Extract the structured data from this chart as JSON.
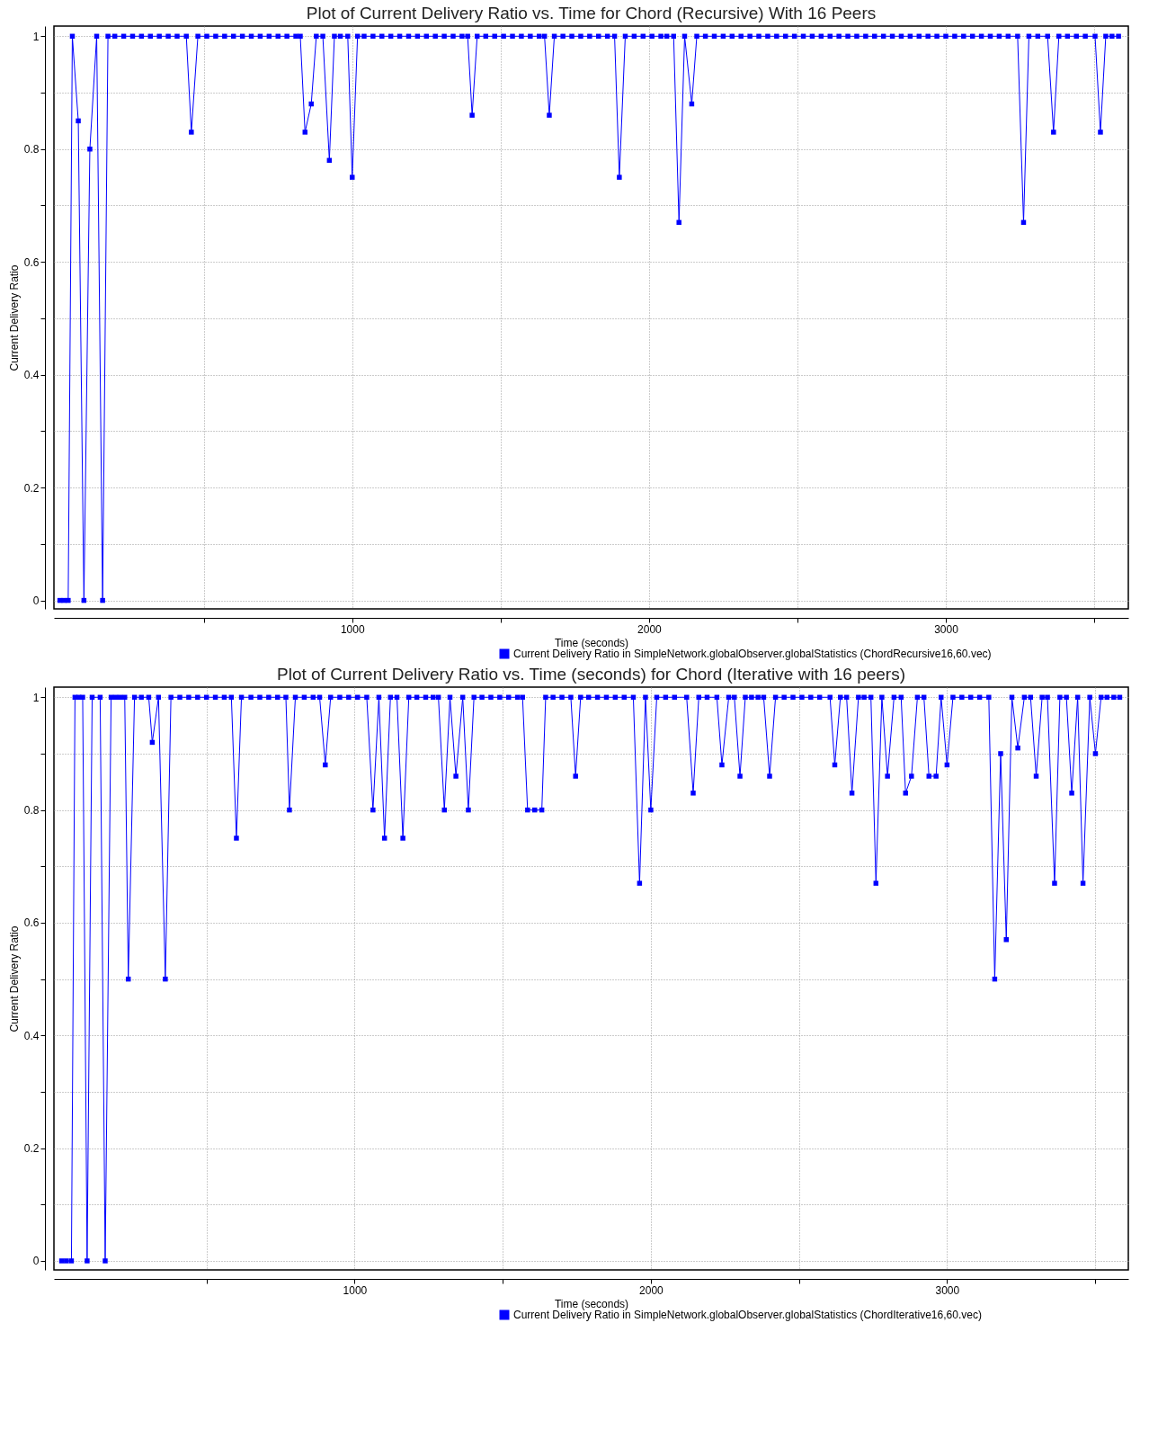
{
  "chart_data": [
    {
      "type": "line",
      "title": "Plot of Current Delivery Ratio vs. Time for Chord (Recursive) With 16 Peers",
      "xlabel": "Time (seconds)",
      "ylabel": "Current Delivery Ratio",
      "xlim": [
        -5,
        3615
      ],
      "xticks": [
        {
          "value": 500,
          "label": null
        },
        1000,
        {
          "value": 1500,
          "label": null
        },
        2000,
        {
          "value": 2500,
          "label": null
        },
        3000,
        {
          "value": 3500,
          "label": null
        }
      ],
      "ylim": [
        -0.015,
        1.018
      ],
      "yticks": [
        0,
        {
          "value": 0.1,
          "label": null
        },
        0.2,
        {
          "value": 0.3,
          "label": null
        },
        0.4,
        {
          "value": 0.5,
          "label": null
        },
        0.6,
        {
          "value": 0.7,
          "label": null
        },
        0.8,
        {
          "value": 0.9,
          "label": null
        },
        1
      ],
      "grid": true,
      "legend": "bottom right",
      "marker": "square",
      "line_style": "solid",
      "x": [
        15,
        29,
        43,
        57,
        77,
        96,
        116,
        139,
        159,
        177,
        200,
        230,
        260,
        290,
        320,
        350,
        380,
        410,
        441,
        458,
        480,
        510,
        540,
        570,
        600,
        630,
        660,
        690,
        720,
        750,
        780,
        810,
        825,
        841,
        862,
        879,
        901,
        923,
        940,
        960,
        985,
        1000,
        1018,
        1040,
        1070,
        1100,
        1130,
        1160,
        1190,
        1220,
        1250,
        1280,
        1310,
        1340,
        1370,
        1389,
        1404,
        1421,
        1450,
        1480,
        1510,
        1540,
        1570,
        1600,
        1630,
        1648,
        1664,
        1681,
        1710,
        1740,
        1770,
        1800,
        1830,
        1860,
        1884,
        1900,
        1920,
        1950,
        1980,
        2010,
        2040,
        2060,
        2083,
        2101,
        2120,
        2144,
        2161,
        2190,
        2220,
        2250,
        2280,
        2310,
        2340,
        2370,
        2400,
        2430,
        2460,
        2490,
        2520,
        2550,
        2580,
        2610,
        2640,
        2670,
        2700,
        2730,
        2760,
        2790,
        2820,
        2850,
        2880,
        2910,
        2940,
        2970,
        3000,
        3030,
        3060,
        3090,
        3120,
        3150,
        3180,
        3210,
        3242,
        3262,
        3280,
        3310,
        3343,
        3363,
        3381,
        3410,
        3440,
        3470,
        3503,
        3521,
        3539,
        3560,
        3582
      ],
      "series": [
        {
          "name": "Current Delivery Ratio in SimpleNetwork.globalObserver.globalStatistics (ChordRecursive16,60.vec)",
          "color": "#0000ff",
          "values": [
            0,
            0,
            0,
            1,
            0.85,
            0,
            0.8,
            1,
            0,
            1,
            1,
            1,
            1,
            1,
            1,
            1,
            1,
            1,
            1,
            0.83,
            1,
            1,
            1,
            1,
            1,
            1,
            1,
            1,
            1,
            1,
            1,
            1,
            1,
            0.83,
            0.88,
            1,
            1,
            0.78,
            1,
            1,
            1,
            0.75,
            1,
            1,
            1,
            1,
            1,
            1,
            1,
            1,
            1,
            1,
            1,
            1,
            1,
            1,
            0.86,
            1,
            1,
            1,
            1,
            1,
            1,
            1,
            1,
            1,
            0.86,
            1,
            1,
            1,
            1,
            1,
            1,
            1,
            1,
            0.75,
            1,
            1,
            1,
            1,
            1,
            1,
            1,
            0.67,
            1,
            0.88,
            1,
            1,
            1,
            1,
            1,
            1,
            1,
            1,
            1,
            1,
            1,
            1,
            1,
            1,
            1,
            1,
            1,
            1,
            1,
            1,
            1,
            1,
            1,
            1,
            1,
            1,
            1,
            1,
            1,
            1,
            1,
            1,
            1,
            1,
            1,
            1,
            1,
            0.67,
            1,
            1,
            1,
            0.83,
            1,
            1,
            1,
            1,
            1,
            0.83,
            1,
            1,
            1
          ]
        }
      ]
    },
    {
      "type": "line",
      "title": "Plot of Current Delivery Ratio vs. Time (seconds) for Chord (Iterative with 16 peers)",
      "xlabel": "Time (seconds)",
      "ylabel": "Current Delivery Ratio",
      "xlim": [
        -15,
        3612
      ],
      "xticks": [
        {
          "value": 500,
          "label": null
        },
        1000,
        {
          "value": 1500,
          "label": null
        },
        2000,
        {
          "value": 2500,
          "label": null
        },
        3000,
        {
          "value": 3500,
          "label": null
        }
      ],
      "ylim": [
        -0.016,
        1.018
      ],
      "yticks": [
        0,
        {
          "value": 0.1,
          "label": null
        },
        0.2,
        {
          "value": 0.3,
          "label": null
        },
        0.4,
        {
          "value": 0.5,
          "label": null
        },
        0.6,
        {
          "value": 0.7,
          "label": null
        },
        0.8,
        {
          "value": 0.9,
          "label": null
        },
        1
      ],
      "grid": true,
      "legend": "bottom right",
      "marker": "square",
      "line_style": "solid",
      "x": [
        11,
        27,
        44,
        56,
        69,
        82,
        97,
        114,
        141,
        158,
        178,
        193,
        208,
        224,
        236,
        257,
        280,
        305,
        317,
        338,
        361,
        380,
        410,
        440,
        470,
        500,
        530,
        560,
        584,
        601,
        618,
        650,
        680,
        710,
        740,
        768,
        780,
        800,
        830,
        860,
        882,
        901,
        919,
        950,
        980,
        1010,
        1041,
        1062,
        1082,
        1101,
        1121,
        1143,
        1163,
        1183,
        1210,
        1240,
        1265,
        1283,
        1303,
        1322,
        1342,
        1365,
        1384,
        1403,
        1430,
        1460,
        1490,
        1520,
        1550,
        1567,
        1584,
        1608,
        1632,
        1645,
        1670,
        1700,
        1730,
        1746,
        1763,
        1790,
        1820,
        1850,
        1880,
        1910,
        1941,
        1962,
        1982,
        2000,
        2020,
        2050,
        2080,
        2121,
        2143,
        2162,
        2190,
        2223,
        2240,
        2263,
        2282,
        2301,
        2319,
        2340,
        2362,
        2381,
        2401,
        2421,
        2450,
        2480,
        2510,
        2540,
        2570,
        2605,
        2621,
        2640,
        2661,
        2679,
        2701,
        2720,
        2743,
        2760,
        2780,
        2799,
        2821,
        2845,
        2860,
        2880,
        2900,
        2922,
        2939,
        2963,
        2980,
        3000,
        3020,
        3050,
        3080,
        3110,
        3141,
        3161,
        3181,
        3200,
        3219,
        3239,
        3261,
        3282,
        3301,
        3321,
        3339,
        3363,
        3381,
        3403,
        3421,
        3441,
        3459,
        3482,
        3501,
        3520,
        3540,
        3563,
        3583
      ],
      "series": [
        {
          "name": "Current Delivery Ratio in SimpleNetwork.globalObserver.globalStatistics (ChordIterative16,60.vec)",
          "color": "#0000ff",
          "values": [
            0,
            0,
            0,
            1,
            1,
            1,
            0,
            1,
            1,
            0,
            1,
            1,
            1,
            1,
            0.5,
            1,
            1,
            1,
            0.92,
            1,
            0.5,
            1,
            1,
            1,
            1,
            1,
            1,
            1,
            1,
            0.75,
            1,
            1,
            1,
            1,
            1,
            1,
            0.8,
            1,
            1,
            1,
            1,
            0.88,
            1,
            1,
            1,
            1,
            1,
            0.8,
            1,
            0.75,
            1,
            1,
            0.75,
            1,
            1,
            1,
            1,
            1,
            0.8,
            1,
            0.86,
            1,
            0.8,
            1,
            1,
            1,
            1,
            1,
            1,
            1,
            0.8,
            0.8,
            0.8,
            1,
            1,
            1,
            1,
            0.86,
            1,
            1,
            1,
            1,
            1,
            1,
            1,
            0.67,
            1,
            0.8,
            1,
            1,
            1,
            1,
            0.83,
            1,
            1,
            1,
            0.88,
            1,
            1,
            0.86,
            1,
            1,
            1,
            1,
            0.86,
            1,
            1,
            1,
            1,
            1,
            1,
            1,
            0.88,
            1,
            1,
            0.83,
            1,
            1,
            1,
            0.67,
            1,
            0.86,
            1,
            1,
            0.83,
            0.86,
            1,
            1,
            0.86,
            0.86,
            1,
            0.88,
            1,
            1,
            1,
            1,
            1,
            0.5,
            0.9,
            0.57,
            1,
            0.91,
            1,
            1,
            0.86,
            1,
            1,
            0.67,
            1,
            1,
            0.83,
            1,
            0.67,
            1,
            0.9,
            1,
            1,
            1,
            1
          ]
        }
      ]
    }
  ]
}
